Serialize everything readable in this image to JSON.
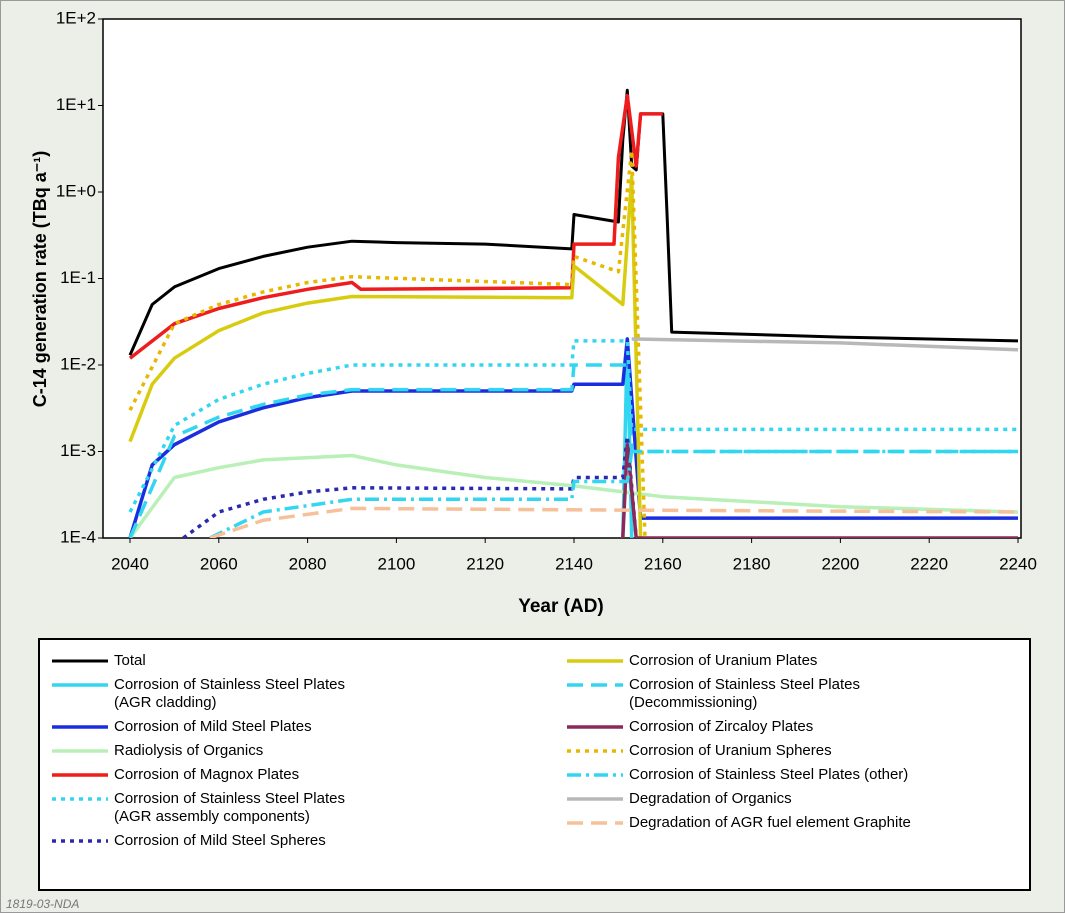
{
  "chart_data": {
    "type": "line",
    "log_y": true,
    "y_label": "C-14 generation rate (TBq a⁻¹)",
    "x_label": "Year (AD)",
    "footnote": "1819-03-NDA",
    "xlim": [
      2040,
      2240
    ],
    "xticks": [
      2040,
      2060,
      2080,
      2100,
      2120,
      2140,
      2160,
      2180,
      2200,
      2220,
      2240
    ],
    "ylim": [
      0.0001,
      100
    ],
    "yticks": [
      {
        "value": 0.0001,
        "label": "1E-4"
      },
      {
        "value": 0.001,
        "label": "1E-3"
      },
      {
        "value": 0.01,
        "label": "1E-2"
      },
      {
        "value": 0.1,
        "label": "1E-1"
      },
      {
        "value": 1,
        "label": "1E+0"
      },
      {
        "value": 10,
        "label": "1E+1"
      },
      {
        "value": 100,
        "label": "1E+2"
      }
    ],
    "series": [
      {
        "name": "Total",
        "color": "#000000",
        "style": "solid",
        "x": [
          2040,
          2045,
          2050,
          2060,
          2070,
          2080,
          2090,
          2100,
          2120,
          2139.5,
          2140,
          2150,
          2151,
          2152,
          2153,
          2154,
          2155,
          2160,
          2161,
          2162,
          2200,
          2240
        ],
        "values": [
          0.013,
          0.05,
          0.08,
          0.13,
          0.18,
          0.23,
          0.27,
          0.26,
          0.25,
          0.22,
          0.55,
          0.45,
          4,
          15,
          2,
          1.8,
          8,
          8,
          0.5,
          0.024,
          0.021,
          0.019
        ]
      },
      {
        "name": "Corrosion of Stainless Steel Plates\n(AGR cladding)",
        "color": "#33d6f0",
        "style": "solid",
        "x": [
          2151,
          2152,
          2153
        ],
        "values": [
          0.0001,
          0.02,
          0.0001
        ]
      },
      {
        "name": "Corrosion of Mild Steel Plates",
        "color": "#1a2ee0",
        "style": "solid",
        "x": [
          2040,
          2045,
          2050,
          2060,
          2070,
          2080,
          2090,
          2139.5,
          2140,
          2151,
          2152,
          2155,
          2240
        ],
        "values": [
          0.0001,
          0.0007,
          0.0012,
          0.0022,
          0.0032,
          0.0042,
          0.005,
          0.005,
          0.006,
          0.006,
          0.02,
          0.00017,
          0.00017
        ]
      },
      {
        "name": "Radiolysis of Organics",
        "color": "#b8f0b8",
        "style": "solid",
        "x": [
          2040,
          2050,
          2060,
          2070,
          2090,
          2100,
          2120,
          2140,
          2160,
          2200,
          2240
        ],
        "values": [
          0.0001,
          0.0005,
          0.00065,
          0.0008,
          0.0009,
          0.0007,
          0.0005,
          0.0004,
          0.0003,
          0.00023,
          0.0002
        ]
      },
      {
        "name": "Corrosion of Magnox Plates",
        "color": "#ee1c1c",
        "style": "solid",
        "x": [
          2040,
          2050,
          2060,
          2070,
          2080,
          2090,
          2092,
          2139.5,
          2140,
          2149,
          2150,
          2152,
          2154,
          2155,
          2160
        ],
        "values": [
          0.012,
          0.03,
          0.045,
          0.06,
          0.075,
          0.09,
          0.075,
          0.078,
          0.25,
          0.25,
          2.5,
          13,
          2,
          8,
          8
        ]
      },
      {
        "name": "Corrosion of Stainless Steel Plates\n(AGR assembly components)",
        "color": "#33d6f0",
        "style": "dotted",
        "x": [
          2040,
          2050,
          2060,
          2070,
          2080,
          2090,
          2139.5,
          2140,
          2152,
          2153,
          2240
        ],
        "values": [
          0.0002,
          0.002,
          0.004,
          0.006,
          0.008,
          0.01,
          0.01,
          0.019,
          0.019,
          0.0018,
          0.0018
        ]
      },
      {
        "name": "Corrosion of Mild Steel Spheres",
        "color": "#2a2ab0",
        "style": "dotted",
        "x": [
          2052,
          2060,
          2070,
          2080,
          2090,
          2139.5,
          2140,
          2151,
          2152,
          2154
        ],
        "values": [
          0.0001,
          0.0002,
          0.00028,
          0.00034,
          0.00038,
          0.00037,
          0.0005,
          0.0005,
          0.0015,
          0.0001
        ]
      },
      {
        "name": "Corrosion of Uranium Plates",
        "color": "#d8cc10",
        "style": "solid",
        "x": [
          2040,
          2045,
          2050,
          2060,
          2070,
          2080,
          2090,
          2139.5,
          2140,
          2151,
          2153,
          2155
        ],
        "values": [
          0.0013,
          0.006,
          0.012,
          0.025,
          0.04,
          0.052,
          0.062,
          0.06,
          0.14,
          0.05,
          1.5,
          0.0001
        ]
      },
      {
        "name": "Corrosion of Stainless Steel Plates\n(Decommissioning)",
        "color": "#33d6f0",
        "style": "dashed",
        "x": [
          2040,
          2050,
          2060,
          2070,
          2080,
          2090,
          2139.5,
          2140,
          2152,
          2153,
          2240
        ],
        "values": [
          0.0001,
          0.0015,
          0.0025,
          0.0035,
          0.0045,
          0.0052,
          0.0052,
          0.01,
          0.01,
          0.001,
          0.001
        ]
      },
      {
        "name": "Corrosion of Zircaloy Plates",
        "color": "#8b2a5a",
        "style": "solid",
        "x": [
          2151,
          2152,
          2154,
          2240
        ],
        "values": [
          0.0001,
          0.0012,
          0.0001,
          0.0001
        ]
      },
      {
        "name": "Corrosion of Uranium Spheres",
        "color": "#e8b800",
        "style": "dotted",
        "x": [
          2040,
          2050,
          2060,
          2070,
          2080,
          2090,
          2139.5,
          2140,
          2150,
          2153,
          2156
        ],
        "values": [
          0.003,
          0.03,
          0.05,
          0.07,
          0.09,
          0.105,
          0.085,
          0.18,
          0.12,
          3,
          0.0001
        ]
      },
      {
        "name": "Corrosion of Stainless Steel Plates (other)",
        "color": "#33d6f0",
        "style": "dashdot",
        "x": [
          2058,
          2070,
          2090,
          2139.5,
          2140,
          2152,
          2153,
          2240
        ],
        "values": [
          0.0001,
          0.0002,
          0.00028,
          0.00028,
          0.00045,
          0.00045,
          0.001,
          0.001
        ]
      },
      {
        "name": "Degradation of Organics",
        "color": "#b8b8b8",
        "style": "solid",
        "x": [
          2153,
          2200,
          2240
        ],
        "values": [
          0.02,
          0.018,
          0.015
        ]
      },
      {
        "name": "Degradation of AGR fuel element Graphite",
        "color": "#f5c09a",
        "style": "dashed",
        "x": [
          2058,
          2070,
          2090,
          2150,
          2240
        ],
        "values": [
          0.0001,
          0.00016,
          0.00022,
          0.00021,
          0.0002
        ]
      }
    ]
  }
}
